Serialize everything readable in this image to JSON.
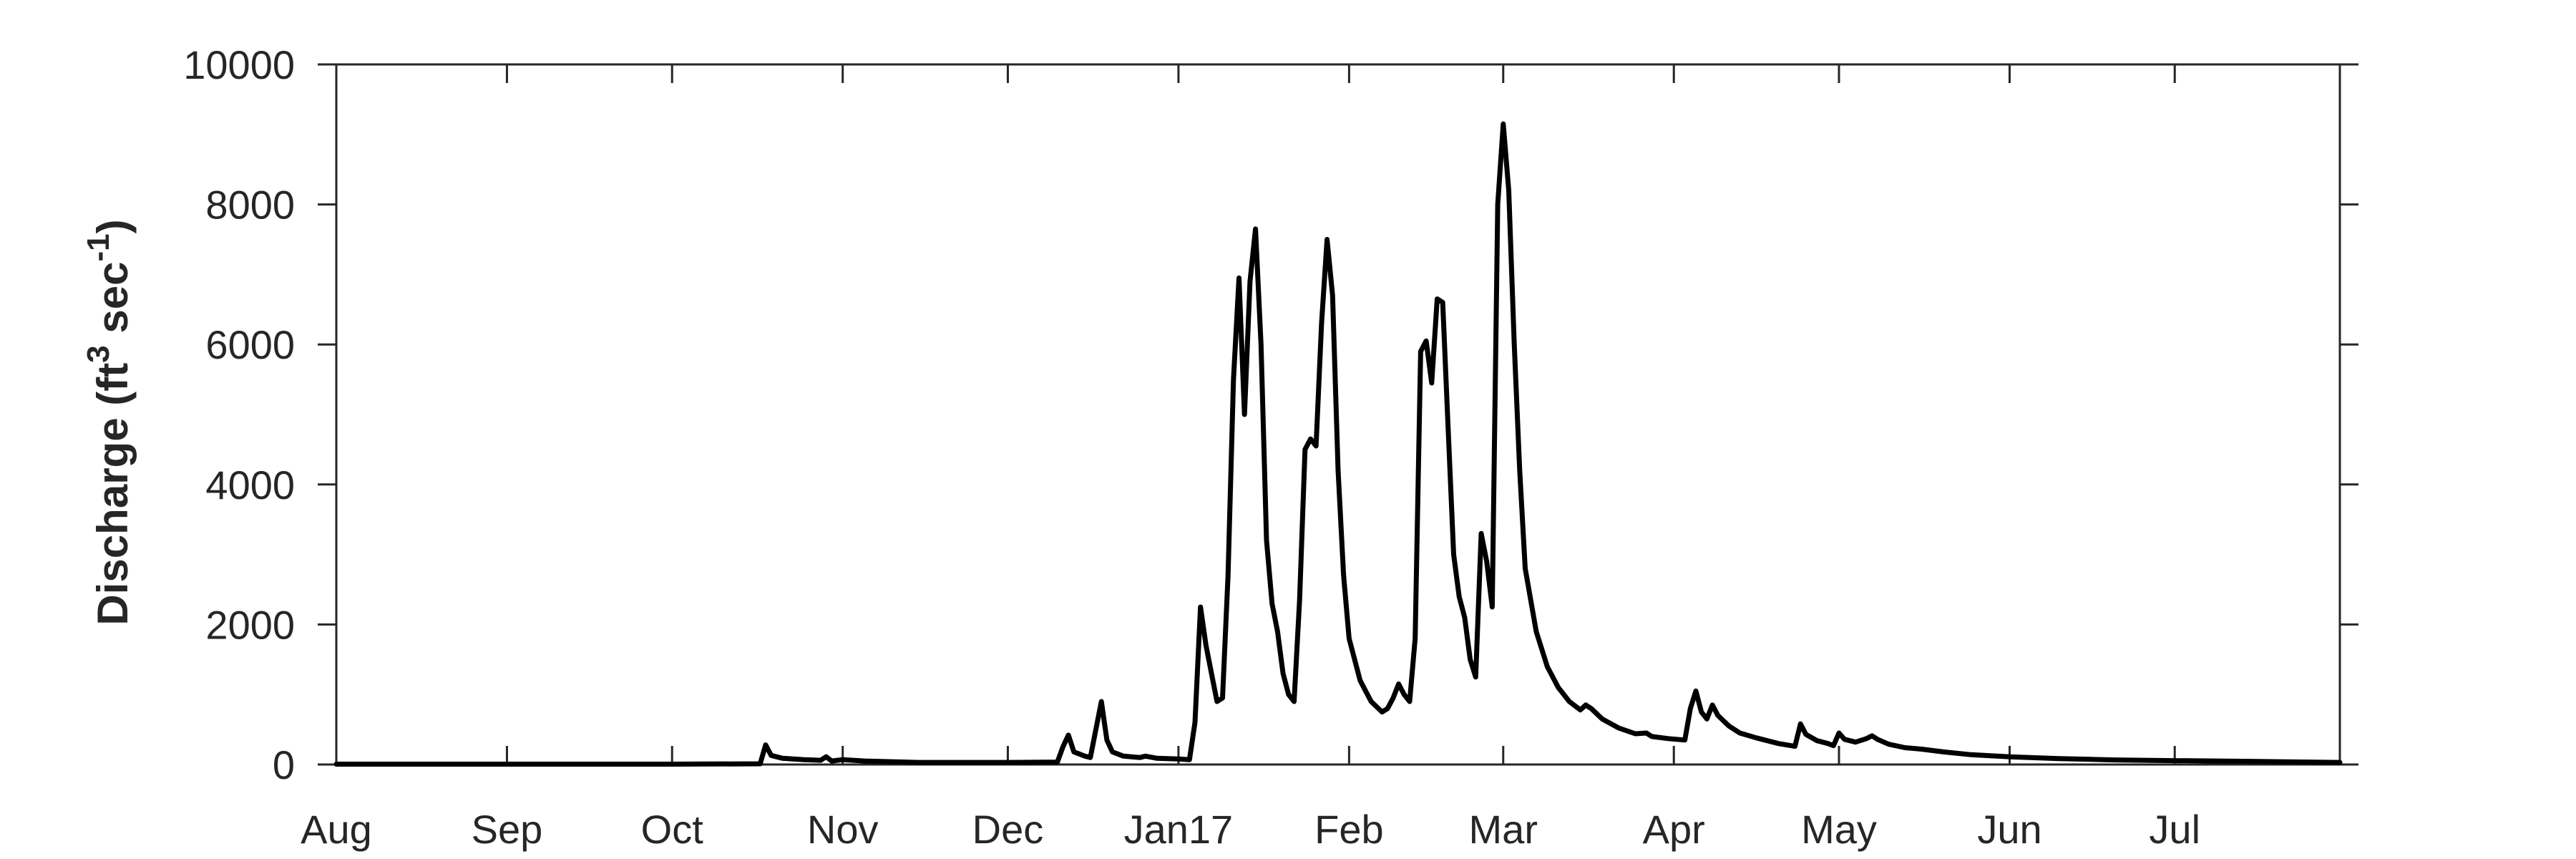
{
  "chart_data": {
    "type": "line",
    "ylabel": {
      "prefix": "Discharge (ft",
      "sup1": "3",
      "mid": " sec",
      "sup2": "-1",
      "suffix": ")"
    },
    "xlabel": "",
    "title": "",
    "ylim": [
      0,
      10000
    ],
    "yticks": [
      0,
      2000,
      4000,
      6000,
      8000,
      10000
    ],
    "xlim": [
      "2016-08-01",
      "2017-07-31"
    ],
    "xticks": [
      {
        "date": "2016-08-01",
        "label": "Aug"
      },
      {
        "date": "2016-09-01",
        "label": "Sep"
      },
      {
        "date": "2016-10-01",
        "label": "Oct"
      },
      {
        "date": "2016-11-01",
        "label": "Nov"
      },
      {
        "date": "2016-12-01",
        "label": "Dec"
      },
      {
        "date": "2017-01-01",
        "label": "Jan17"
      },
      {
        "date": "2017-02-01",
        "label": "Feb"
      },
      {
        "date": "2017-03-01",
        "label": "Mar"
      },
      {
        "date": "2017-04-01",
        "label": "Apr"
      },
      {
        "date": "2017-05-01",
        "label": "May"
      },
      {
        "date": "2017-06-01",
        "label": "Jun"
      },
      {
        "date": "2017-07-01",
        "label": "Jul"
      }
    ],
    "grid": false,
    "legend": "none",
    "series": [
      {
        "color": "#000000",
        "points": [
          [
            "2016-08-01",
            5
          ],
          [
            "2016-09-01",
            5
          ],
          [
            "2016-10-01",
            5
          ],
          [
            "2016-10-17",
            10
          ],
          [
            "2016-10-18",
            280
          ],
          [
            "2016-10-19",
            130
          ],
          [
            "2016-10-21",
            90
          ],
          [
            "2016-10-25",
            70
          ],
          [
            "2016-10-28",
            60
          ],
          [
            "2016-10-29",
            110
          ],
          [
            "2016-10-30",
            50
          ],
          [
            "2016-11-01",
            70
          ],
          [
            "2016-11-05",
            50
          ],
          [
            "2016-11-15",
            30
          ],
          [
            "2016-12-01",
            30
          ],
          [
            "2016-12-10",
            35
          ],
          [
            "2016-12-11",
            250
          ],
          [
            "2016-12-12",
            420
          ],
          [
            "2016-12-13",
            180
          ],
          [
            "2016-12-15",
            120
          ],
          [
            "2016-12-16",
            100
          ],
          [
            "2016-12-17",
            500
          ],
          [
            "2016-12-18",
            900
          ],
          [
            "2016-12-19",
            350
          ],
          [
            "2016-12-20",
            180
          ],
          [
            "2016-12-22",
            120
          ],
          [
            "2016-12-25",
            100
          ],
          [
            "2016-12-26",
            120
          ],
          [
            "2016-12-28",
            90
          ],
          [
            "2017-01-01",
            80
          ],
          [
            "2017-01-03",
            70
          ],
          [
            "2017-01-04",
            600
          ],
          [
            "2017-01-05",
            2250
          ],
          [
            "2017-01-06",
            1700
          ],
          [
            "2017-01-07",
            1300
          ],
          [
            "2017-01-08",
            900
          ],
          [
            "2017-01-09",
            950
          ],
          [
            "2017-01-10",
            2700
          ],
          [
            "2017-01-11",
            5500
          ],
          [
            "2017-01-12",
            6950
          ],
          [
            "2017-01-13",
            5000
          ],
          [
            "2017-01-14",
            6900
          ],
          [
            "2017-01-15",
            7650
          ],
          [
            "2017-01-16",
            6000
          ],
          [
            "2017-01-17",
            3200
          ],
          [
            "2017-01-18",
            2300
          ],
          [
            "2017-01-19",
            1900
          ],
          [
            "2017-01-20",
            1300
          ],
          [
            "2017-01-21",
            1000
          ],
          [
            "2017-01-22",
            900
          ],
          [
            "2017-01-23",
            2350
          ],
          [
            "2017-01-24",
            4500
          ],
          [
            "2017-01-25",
            4650
          ],
          [
            "2017-01-26",
            4550
          ],
          [
            "2017-01-27",
            6300
          ],
          [
            "2017-01-28",
            7500
          ],
          [
            "2017-01-29",
            6700
          ],
          [
            "2017-01-30",
            4200
          ],
          [
            "2017-01-31",
            2700
          ],
          [
            "2017-02-01",
            1800
          ],
          [
            "2017-02-03",
            1200
          ],
          [
            "2017-02-05",
            900
          ],
          [
            "2017-02-07",
            750
          ],
          [
            "2017-02-08",
            800
          ],
          [
            "2017-02-09",
            950
          ],
          [
            "2017-02-10",
            1150
          ],
          [
            "2017-02-11",
            1000
          ],
          [
            "2017-02-12",
            900
          ],
          [
            "2017-02-13",
            1800
          ],
          [
            "2017-02-14",
            5900
          ],
          [
            "2017-02-15",
            6050
          ],
          [
            "2017-02-16",
            5450
          ],
          [
            "2017-02-17",
            6650
          ],
          [
            "2017-02-18",
            6600
          ],
          [
            "2017-02-19",
            4800
          ],
          [
            "2017-02-20",
            3000
          ],
          [
            "2017-02-21",
            2400
          ],
          [
            "2017-02-22",
            2100
          ],
          [
            "2017-02-23",
            1500
          ],
          [
            "2017-02-24",
            1250
          ],
          [
            "2017-02-25",
            3300
          ],
          [
            "2017-02-26",
            2900
          ],
          [
            "2017-02-27",
            2250
          ],
          [
            "2017-02-28",
            8000
          ],
          [
            "2017-03-01",
            9150
          ],
          [
            "2017-03-02",
            8200
          ],
          [
            "2017-03-03",
            6000
          ],
          [
            "2017-03-04",
            4200
          ],
          [
            "2017-03-05",
            2800
          ],
          [
            "2017-03-07",
            1900
          ],
          [
            "2017-03-09",
            1400
          ],
          [
            "2017-03-11",
            1100
          ],
          [
            "2017-03-13",
            900
          ],
          [
            "2017-03-15",
            780
          ],
          [
            "2017-03-16",
            850
          ],
          [
            "2017-03-17",
            800
          ],
          [
            "2017-03-19",
            650
          ],
          [
            "2017-03-22",
            520
          ],
          [
            "2017-03-25",
            440
          ],
          [
            "2017-03-27",
            450
          ],
          [
            "2017-03-28",
            400
          ],
          [
            "2017-03-31",
            370
          ],
          [
            "2017-04-03",
            350
          ],
          [
            "2017-04-04",
            800
          ],
          [
            "2017-04-05",
            1050
          ],
          [
            "2017-04-06",
            750
          ],
          [
            "2017-04-07",
            650
          ],
          [
            "2017-04-08",
            850
          ],
          [
            "2017-04-09",
            700
          ],
          [
            "2017-04-11",
            550
          ],
          [
            "2017-04-13",
            450
          ],
          [
            "2017-04-16",
            380
          ],
          [
            "2017-04-20",
            300
          ],
          [
            "2017-04-23",
            260
          ],
          [
            "2017-04-24",
            580
          ],
          [
            "2017-04-25",
            430
          ],
          [
            "2017-04-27",
            340
          ],
          [
            "2017-04-29",
            300
          ],
          [
            "2017-04-30",
            270
          ],
          [
            "2017-05-01",
            450
          ],
          [
            "2017-05-02",
            360
          ],
          [
            "2017-05-04",
            320
          ],
          [
            "2017-05-06",
            370
          ],
          [
            "2017-05-07",
            410
          ],
          [
            "2017-05-08",
            360
          ],
          [
            "2017-05-10",
            290
          ],
          [
            "2017-05-13",
            240
          ],
          [
            "2017-05-16",
            220
          ],
          [
            "2017-05-20",
            180
          ],
          [
            "2017-05-25",
            140
          ],
          [
            "2017-06-01",
            110
          ],
          [
            "2017-06-10",
            85
          ],
          [
            "2017-06-20",
            65
          ],
          [
            "2017-07-01",
            55
          ],
          [
            "2017-07-15",
            45
          ],
          [
            "2017-07-31",
            30
          ]
        ]
      }
    ]
  }
}
